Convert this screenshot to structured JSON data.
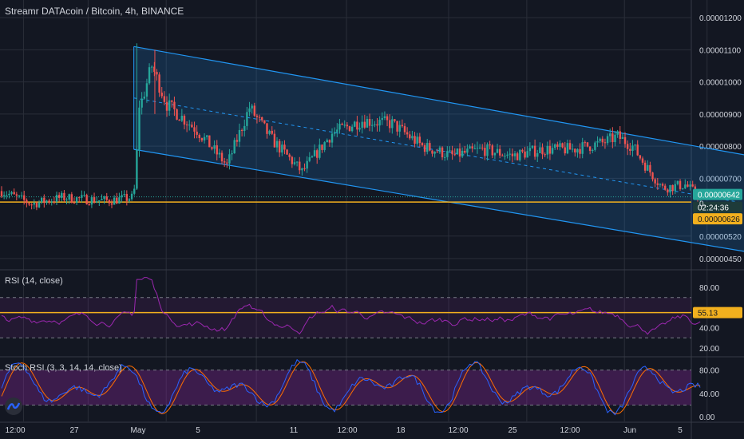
{
  "header": {
    "title": "Streamr DATAcoin / Bitcoin, 4h, BINANCE"
  },
  "colors": {
    "background": "#131722",
    "grid": "#2a2e39",
    "up": "#26a69a",
    "down": "#ef5350",
    "channel": "#2196f3",
    "support": "#f2b01e",
    "rsi": "#9c27b0",
    "stoch_k": "#2962ff",
    "stoch_d": "#ff6d00"
  },
  "price_pane": {
    "y_ticks": [
      "0.00001200",
      "0.00001100",
      "0.00001000",
      "0.00000900",
      "0.00000800",
      "0.00000700",
      "0.00000520",
      "0.00000450"
    ],
    "y_tick_values": [
      1.2e-05,
      1.1e-05,
      1e-05,
      9e-06,
      8e-06,
      7e-06,
      5.2e-06,
      4.5e-06
    ],
    "ylim": [
      4.2e-06,
      1.24e-05
    ],
    "last_price_label": "0.00000642",
    "countdown_label": "02:24:36",
    "partial_tick_label": "0.",
    "support_label": "0.00000626",
    "support_value": 6.26e-06
  },
  "rsi_pane": {
    "title": "RSI (14, close)",
    "y_ticks": [
      "80.00",
      "40.00",
      "20.00"
    ],
    "y_tick_values": [
      80,
      40,
      20
    ],
    "ylim": [
      12,
      96
    ],
    "bands": [
      70,
      30
    ],
    "value_label": "55.13",
    "line_level": 55.13
  },
  "stoch_pane": {
    "title": "Stoch RSI (3, 3, 14, 14, close)",
    "y_ticks": [
      "80.00",
      "40.00",
      "0.00"
    ],
    "y_tick_values": [
      80,
      40,
      0
    ],
    "ylim": [
      -8,
      100
    ],
    "bands": [
      80,
      20
    ]
  },
  "x_axis": {
    "labels": [
      "12:00",
      "27",
      "May",
      "5",
      "11",
      "12:00",
      "18",
      "12:00",
      "25",
      "12:00",
      "Jun",
      "5"
    ]
  },
  "chart_data": {
    "type": "candlestick",
    "title": "Streamr DATAcoin / Bitcoin, 4h, BINANCE",
    "x_range": [
      "Apr 24",
      "Jun 6"
    ],
    "ylim": [
      4.2e-06,
      1.24e-05
    ],
    "price_path_days": [
      [
        0,
        6.6e-06
      ],
      [
        2,
        6.2e-06
      ],
      [
        4,
        6.4e-06
      ],
      [
        7,
        6.3e-06
      ],
      [
        8.8,
        6.4e-06
      ],
      [
        9.2,
        9.2e-06
      ],
      [
        10,
        1.05e-05
      ],
      [
        11,
        9.3e-06
      ],
      [
        13,
        8.5e-06
      ],
      [
        15,
        7.4e-06
      ],
      [
        16.5,
        9.2e-06
      ],
      [
        18,
        8.2e-06
      ],
      [
        20,
        7.2e-06
      ],
      [
        22,
        8.4e-06
      ],
      [
        24,
        8.8e-06
      ],
      [
        26,
        8.7e-06
      ],
      [
        28,
        8e-06
      ],
      [
        30,
        7.7e-06
      ],
      [
        32,
        7.9e-06
      ],
      [
        34,
        7.7e-06
      ],
      [
        36,
        7.9e-06
      ],
      [
        38,
        7.9e-06
      ],
      [
        40,
        8.1e-06
      ],
      [
        41,
        8.3e-06
      ],
      [
        42,
        8e-06
      ],
      [
        43,
        7.3e-06
      ],
      [
        44,
        6.7e-06
      ],
      [
        45.5,
        6.8e-06
      ],
      [
        46.5,
        6.4e-06
      ]
    ],
    "channel": {
      "upper": [
        [
          8.8,
          1.11e-05
        ],
        [
          51,
          7.6e-06
        ]
      ],
      "lower": [
        [
          8.8,
          7.9e-06
        ],
        [
          51,
          4.6e-06
        ]
      ]
    },
    "last_price": 6.42e-06,
    "support": 6.26e-06
  }
}
